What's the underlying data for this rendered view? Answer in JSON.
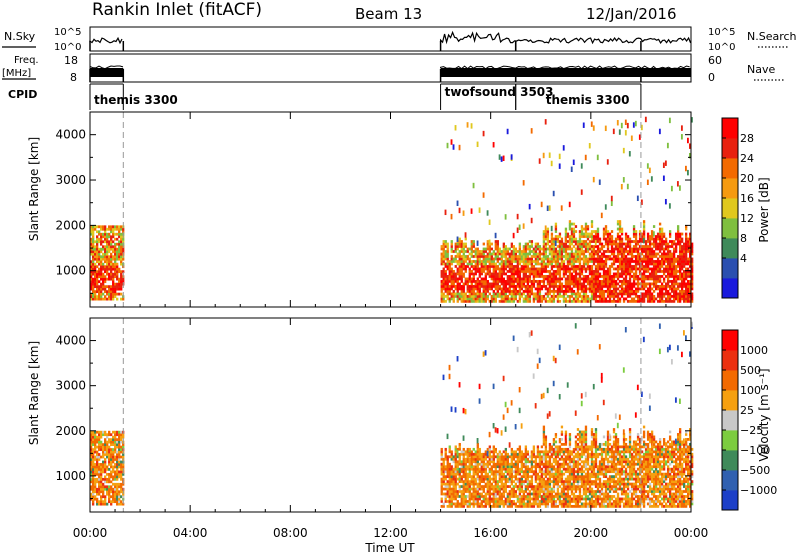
{
  "header": {
    "station": "Rankin Inlet (fitACF)",
    "beam": "Beam 13",
    "date": "12/Jan/2016"
  },
  "top_panels": {
    "nsky_label": "N.Sky",
    "nsearch_label": "N.Search",
    "nsky_ticks": [
      "10^5",
      "10^0"
    ],
    "freq_label": "Freq.",
    "freq_unit": "[MHz]",
    "freq_ticks": [
      "18",
      "8"
    ],
    "nave_label": "Nave",
    "nave_ticks": [
      "60",
      "0"
    ],
    "cpid_label": "CPID",
    "cpid_segments": [
      {
        "name": "themis 3300",
        "start": 0.0,
        "end": 1.33
      },
      {
        "name": "twofsound 3503",
        "start": 14.0,
        "end": 17.0
      },
      {
        "name": "themis 3300",
        "start": 17.0,
        "end": 22.0
      }
    ]
  },
  "x_axis": {
    "title": "Time UT",
    "range_hours": [
      0,
      24
    ],
    "tick_hours": [
      0,
      4,
      8,
      12,
      16,
      20,
      24
    ],
    "tick_labels": [
      "00:00",
      "04:00",
      "08:00",
      "12:00",
      "16:00",
      "20:00",
      "00:00"
    ]
  },
  "chart_data": [
    {
      "type": "heatmap",
      "name": "power",
      "xlabel": "Time UT",
      "ylabel": "Slant Range [km]",
      "ylim": [
        200,
        4500
      ],
      "yticks": [
        1000,
        2000,
        3000,
        4000
      ],
      "colorbar": {
        "label": "Power [dB]",
        "ticks": [
          "28",
          "24",
          "20",
          "16",
          "12",
          "8",
          "4"
        ],
        "range": [
          0,
          32
        ],
        "colors": [
          "#1a1adc",
          "#2a4fb0",
          "#3f8a5a",
          "#7fbf3f",
          "#e0c81e",
          "#f59a10",
          "#f36a00",
          "#e8200e",
          "#ff0000"
        ]
      },
      "data_intervals_hours": [
        [
          0.0,
          1.33
        ],
        [
          14.0,
          24.0
        ]
      ],
      "cpid_change_hours": [
        1.33,
        22.0
      ]
    },
    {
      "type": "heatmap",
      "name": "velocity",
      "xlabel": "Time UT",
      "ylabel": "Slant Range [km]",
      "ylim": [
        200,
        4500
      ],
      "yticks": [
        1000,
        2000,
        3000,
        4000
      ],
      "colorbar": {
        "label": "Velocity [m s⁻¹]",
        "ticks": [
          "1000",
          "500",
          "100",
          "25",
          "−25",
          "−100",
          "−500",
          "−1000"
        ],
        "colors": [
          "#1c3fc8",
          "#3060b0",
          "#3f8a5a",
          "#7ccc3f",
          "#c8c8c8",
          "#f5a010",
          "#f36a00",
          "#ec3010",
          "#ff0000"
        ]
      },
      "data_intervals_hours": [
        [
          0.0,
          1.33
        ],
        [
          14.0,
          24.0
        ]
      ],
      "cpid_change_hours": [
        1.33,
        22.0
      ]
    }
  ]
}
